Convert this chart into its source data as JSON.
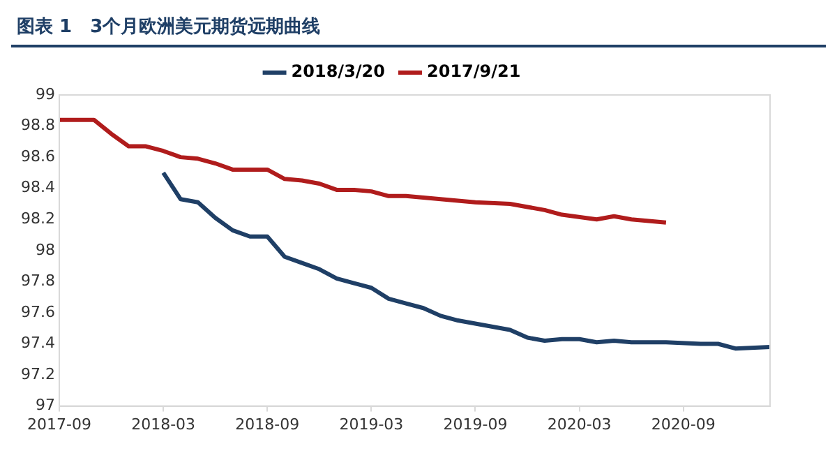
{
  "chart_data": {
    "type": "line",
    "title": "图表 1　3个月欧洲美元期货远期曲线",
    "series": [
      {
        "name": "2018/3/20",
        "color": "#1f3f66",
        "x": [
          "2018-03",
          "2018-04",
          "2018-05",
          "2018-06",
          "2018-07",
          "2018-08",
          "2018-09",
          "2018-10",
          "2018-11",
          "2018-12",
          "2019-01",
          "2019-02",
          "2019-03",
          "2019-04",
          "2019-05",
          "2019-06",
          "2019-07",
          "2019-08",
          "2019-10",
          "2019-11",
          "2019-12",
          "2020-01",
          "2020-02",
          "2020-03",
          "2020-04",
          "2020-05",
          "2020-06",
          "2020-08",
          "2020-10",
          "2020-11",
          "2020-12",
          "2021-02"
        ],
        "values": [
          98.5,
          98.33,
          98.31,
          98.21,
          98.13,
          98.09,
          98.09,
          97.96,
          97.92,
          97.88,
          97.82,
          97.79,
          97.76,
          97.69,
          97.66,
          97.63,
          97.58,
          97.55,
          97.51,
          97.49,
          97.44,
          97.42,
          97.43,
          97.43,
          97.41,
          97.42,
          97.41,
          97.41,
          97.4,
          97.4,
          97.37,
          97.38
        ]
      },
      {
        "name": "2017/9/21",
        "color": "#b01c1c",
        "x": [
          "2017-09",
          "2017-11",
          "2017-12",
          "2018-01",
          "2018-02",
          "2018-03",
          "2018-04",
          "2018-05",
          "2018-06",
          "2018-07",
          "2018-08",
          "2018-09",
          "2018-10",
          "2018-11",
          "2018-12",
          "2019-01",
          "2019-02",
          "2019-03",
          "2019-04",
          "2019-05",
          "2019-07",
          "2019-09",
          "2019-11",
          "2020-01",
          "2020-02",
          "2020-04",
          "2020-05",
          "2020-06",
          "2020-08"
        ],
        "values": [
          98.84,
          98.84,
          98.75,
          98.67,
          98.67,
          98.64,
          98.6,
          98.59,
          98.56,
          98.52,
          98.52,
          98.52,
          98.46,
          98.45,
          98.43,
          98.39,
          98.39,
          98.38,
          98.35,
          98.35,
          98.33,
          98.31,
          98.3,
          98.26,
          98.23,
          98.2,
          98.22,
          98.2,
          98.18
        ]
      }
    ],
    "xlim": [
      "2017-09",
      "2021-02"
    ],
    "xticks": [
      "2017-09",
      "2018-03",
      "2018-09",
      "2019-03",
      "2019-09",
      "2020-03",
      "2020-09"
    ],
    "ylim": [
      97,
      99
    ],
    "yticks": [
      97,
      97.2,
      97.4,
      97.6,
      97.8,
      98,
      98.2,
      98.4,
      98.6,
      98.8,
      99
    ],
    "grid": false,
    "legend": "top",
    "marker": "none",
    "line_style": "solid"
  }
}
